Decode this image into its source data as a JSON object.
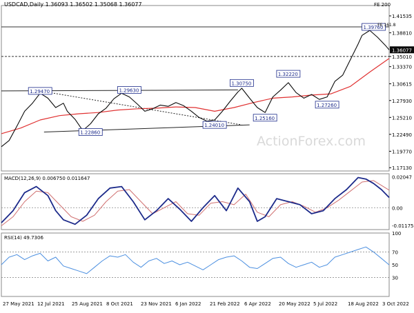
{
  "header": {
    "symbol_line": "USDCAD,Daily  1.36093 1.36502 1.35068 1.36077",
    "top_right_label": "FE 200"
  },
  "watermark": "ActionForex.com",
  "colors": {
    "price": "#0a0a0a",
    "ma": "#e03030",
    "macd": "#1c2a8a",
    "signal": "#d07070",
    "rsi": "#4b8fe0",
    "label_border": "#1c2a8a",
    "label_text": "#1c2a8a",
    "grid_dash": "#7a7a7a",
    "frame": "#8a8a8a",
    "current_price_bg": "#0a0a0a"
  },
  "chart_data": [
    {
      "type": "line",
      "panel": "price",
      "title": "USDCAD,Daily  1.36093 1.36502 1.35068 1.36077",
      "ylim": [
        1.166,
        1.432
      ],
      "y_ticks": [
        "1.41535",
        "1.38810",
        "1.36077",
        "1.35010",
        "1.33370",
        "1.30615",
        "1.27930",
        "1.25210",
        "1.22490",
        "1.19770",
        "1.17130"
      ],
      "x_ticks": [
        "27 May 2021",
        "12 Jul 2021",
        "25 Aug 2021",
        "8 Oct 2021",
        "23 Nov 2021",
        "6 Jan 2022",
        "21 Feb 2022",
        "6 Apr 2022",
        "20 May 2022",
        "5 Jul 2022",
        "18 Aug 2022",
        "3 Oct 2022"
      ],
      "x_range": [
        0,
        100
      ],
      "series": [
        {
          "key": "close",
          "x": [
            0,
            2,
            4,
            6,
            8,
            10,
            12,
            14,
            16,
            17,
            19,
            21,
            23,
            25,
            27,
            29,
            31,
            33,
            35,
            37,
            39,
            41,
            43,
            45,
            47,
            49,
            51,
            53,
            55,
            57,
            59,
            61,
            62,
            64,
            66,
            68,
            70,
            72,
            74,
            76,
            78,
            80,
            82,
            84,
            86,
            88,
            90,
            92,
            93,
            95,
            97,
            99,
            100
          ],
          "values": [
            1.205,
            1.215,
            1.238,
            1.262,
            1.275,
            1.291,
            1.283,
            1.268,
            1.275,
            1.262,
            1.249,
            1.231,
            1.242,
            1.258,
            1.267,
            1.282,
            1.291,
            1.285,
            1.274,
            1.262,
            1.266,
            1.272,
            1.27,
            1.276,
            1.271,
            1.262,
            1.252,
            1.246,
            1.248,
            1.262,
            1.278,
            1.293,
            1.299,
            1.283,
            1.268,
            1.26,
            1.285,
            1.296,
            1.308,
            1.292,
            1.283,
            1.289,
            1.281,
            1.285,
            1.31,
            1.32,
            1.345,
            1.37,
            1.384,
            1.392,
            1.381,
            1.368,
            1.36077
          ]
        },
        {
          "key": "ma55",
          "x": [
            0,
            5,
            10,
            15,
            20,
            25,
            30,
            35,
            40,
            45,
            50,
            55,
            60,
            65,
            70,
            75,
            80,
            85,
            90,
            95,
            100
          ],
          "values": [
            1.226,
            1.235,
            1.248,
            1.255,
            1.258,
            1.26,
            1.264,
            1.266,
            1.267,
            1.269,
            1.268,
            1.262,
            1.268,
            1.276,
            1.283,
            1.285,
            1.288,
            1.29,
            1.302,
            1.325,
            1.347
          ]
        }
      ],
      "labels": [
        {
          "text": "1.29470",
          "x": 10,
          "y": 1.2947
        },
        {
          "text": "1.22860",
          "x": 23,
          "y": 1.2286
        },
        {
          "text": "1.29630",
          "x": 33,
          "y": 1.2963
        },
        {
          "text": "1.24010",
          "x": 55,
          "y": 1.2401
        },
        {
          "text": "1.30750",
          "x": 62,
          "y": 1.3075
        },
        {
          "text": "1.25160",
          "x": 68,
          "y": 1.2516
        },
        {
          "text": "1.32220",
          "x": 74,
          "y": 1.3222
        },
        {
          "text": "1.27260",
          "x": 84,
          "y": 1.2726
        },
        {
          "text": "1.39760",
          "x": 96,
          "y": 1.3976
        }
      ],
      "hlines": [
        {
          "y": 1.3976,
          "style": "solid"
        },
        {
          "y": 1.3501,
          "style": "dashed"
        }
      ],
      "trendlines": [
        {
          "x": [
            0,
            61
          ],
          "y": [
            1.2947,
            1.2963
          ],
          "style": "solid"
        },
        {
          "x": [
            10,
            62
          ],
          "y": [
            1.2947,
            1.2401
          ],
          "style": "dotted"
        },
        {
          "x": [
            11,
            64
          ],
          "y": [
            1.2286,
            1.2401
          ],
          "style": "solid"
        }
      ],
      "fib_label": "FE 161.8",
      "current_price": "1.36077",
      "level_labels": [
        "1.35010"
      ]
    },
    {
      "type": "line",
      "panel": "macd",
      "title": "MACD(12,26,9) 0.006750 0.011647",
      "ylim": [
        -0.0145,
        0.0225
      ],
      "y_ticks": [
        "0.02047",
        "0.00",
        "-0.011751"
      ],
      "series": [
        {
          "key": "macd",
          "x": [
            0,
            3,
            6,
            9,
            12,
            14,
            16,
            19,
            22,
            25,
            28,
            31,
            34,
            37,
            40,
            43,
            46,
            49,
            52,
            55,
            58,
            61,
            64,
            66,
            68,
            71,
            74,
            77,
            80,
            83,
            86,
            89,
            92,
            94,
            96,
            98,
            100
          ],
          "values": [
            -0.01,
            -0.002,
            0.01,
            0.014,
            0.008,
            -0.002,
            -0.008,
            -0.011,
            -0.005,
            0.006,
            0.013,
            0.014,
            0.004,
            -0.008,
            -0.002,
            0.006,
            -0.001,
            -0.009,
            0.0,
            0.008,
            -0.002,
            0.013,
            0.004,
            -0.009,
            -0.006,
            0.006,
            0.004,
            0.002,
            -0.004,
            -0.002,
            0.006,
            0.012,
            0.02,
            0.019,
            0.016,
            0.012,
            0.00675
          ]
        },
        {
          "key": "signal",
          "x": [
            0,
            3,
            6,
            9,
            12,
            15,
            18,
            21,
            24,
            27,
            30,
            33,
            36,
            39,
            42,
            45,
            48,
            51,
            54,
            57,
            60,
            63,
            66,
            69,
            72,
            75,
            78,
            81,
            84,
            87,
            90,
            93,
            96,
            100
          ],
          "values": [
            -0.012,
            -0.006,
            0.004,
            0.011,
            0.01,
            0.002,
            -0.006,
            -0.009,
            -0.005,
            0.004,
            0.011,
            0.012,
            0.004,
            -0.004,
            0.0,
            0.004,
            -0.004,
            -0.005,
            0.003,
            0.004,
            0.002,
            0.009,
            -0.003,
            -0.006,
            0.002,
            0.004,
            0.001,
            -0.003,
            0.0,
            0.005,
            0.011,
            0.017,
            0.018,
            0.011647
          ]
        }
      ]
    },
    {
      "type": "line",
      "panel": "rsi",
      "title": "RSI(14) 49.7306",
      "ylim": [
        0,
        100
      ],
      "y_ticks": [
        "100",
        "70",
        "50",
        "30"
      ],
      "levels": [
        70,
        30
      ],
      "series": [
        {
          "key": "rsi",
          "x": [
            0,
            2,
            4,
            6,
            8,
            10,
            12,
            14,
            16,
            18,
            20,
            22,
            24,
            26,
            28,
            30,
            32,
            34,
            36,
            38,
            40,
            42,
            44,
            46,
            48,
            50,
            52,
            54,
            56,
            58,
            60,
            62,
            64,
            66,
            68,
            70,
            72,
            74,
            76,
            78,
            80,
            82,
            84,
            86,
            88,
            90,
            92,
            94,
            96,
            98,
            100
          ],
          "values": [
            50,
            62,
            66,
            58,
            64,
            68,
            56,
            62,
            48,
            44,
            40,
            36,
            46,
            56,
            64,
            62,
            66,
            54,
            46,
            56,
            60,
            52,
            56,
            50,
            54,
            48,
            42,
            50,
            58,
            62,
            64,
            56,
            46,
            44,
            52,
            60,
            62,
            52,
            46,
            50,
            54,
            46,
            50,
            62,
            66,
            70,
            74,
            78,
            70,
            60,
            49.7306
          ]
        }
      ]
    }
  ]
}
